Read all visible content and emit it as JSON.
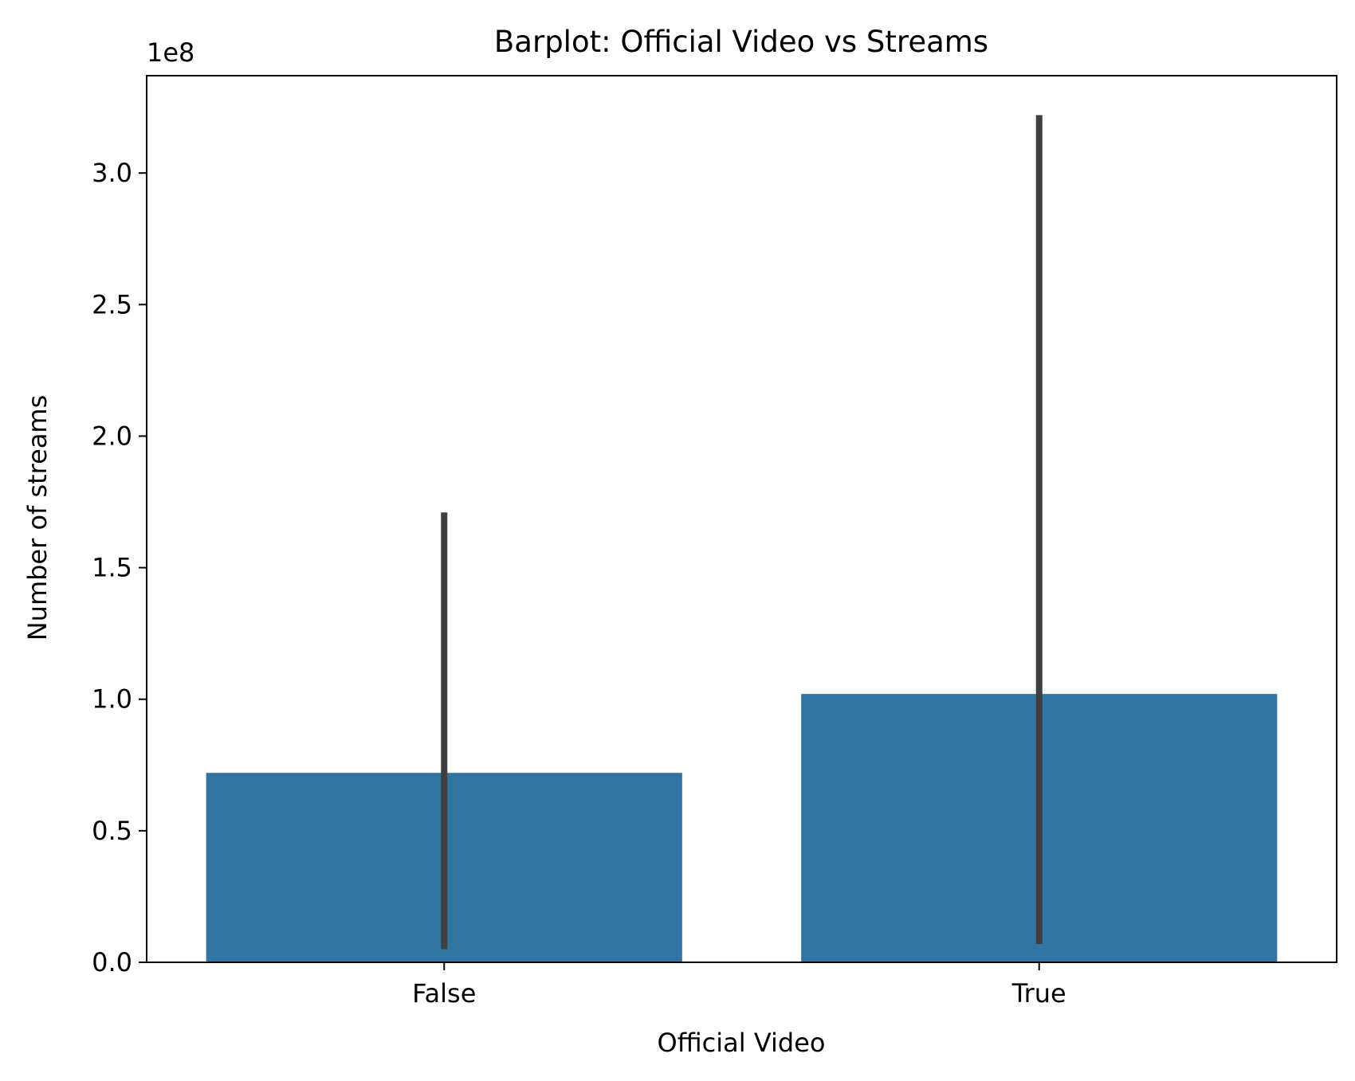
{
  "chart_data": {
    "type": "bar",
    "title": "Barplot: Official Video vs Streams",
    "xlabel": "Official Video",
    "ylabel": "Number of streams",
    "y_offset_label": "1e8",
    "categories": [
      "False",
      "True"
    ],
    "values": [
      0.72,
      1.02
    ],
    "error_bars": [
      {
        "low": 0.05,
        "high": 1.71
      },
      {
        "low": 0.07,
        "high": 3.22
      }
    ],
    "y_scale_multiplier": 100000000,
    "ylim": [
      0,
      3.37
    ],
    "yticks": [
      "0.0",
      "0.5",
      "1.0",
      "1.5",
      "2.0",
      "2.5",
      "3.0"
    ],
    "grid": false,
    "bar_color": "#3274a1",
    "errorbar_color": "#3f3f3f"
  }
}
